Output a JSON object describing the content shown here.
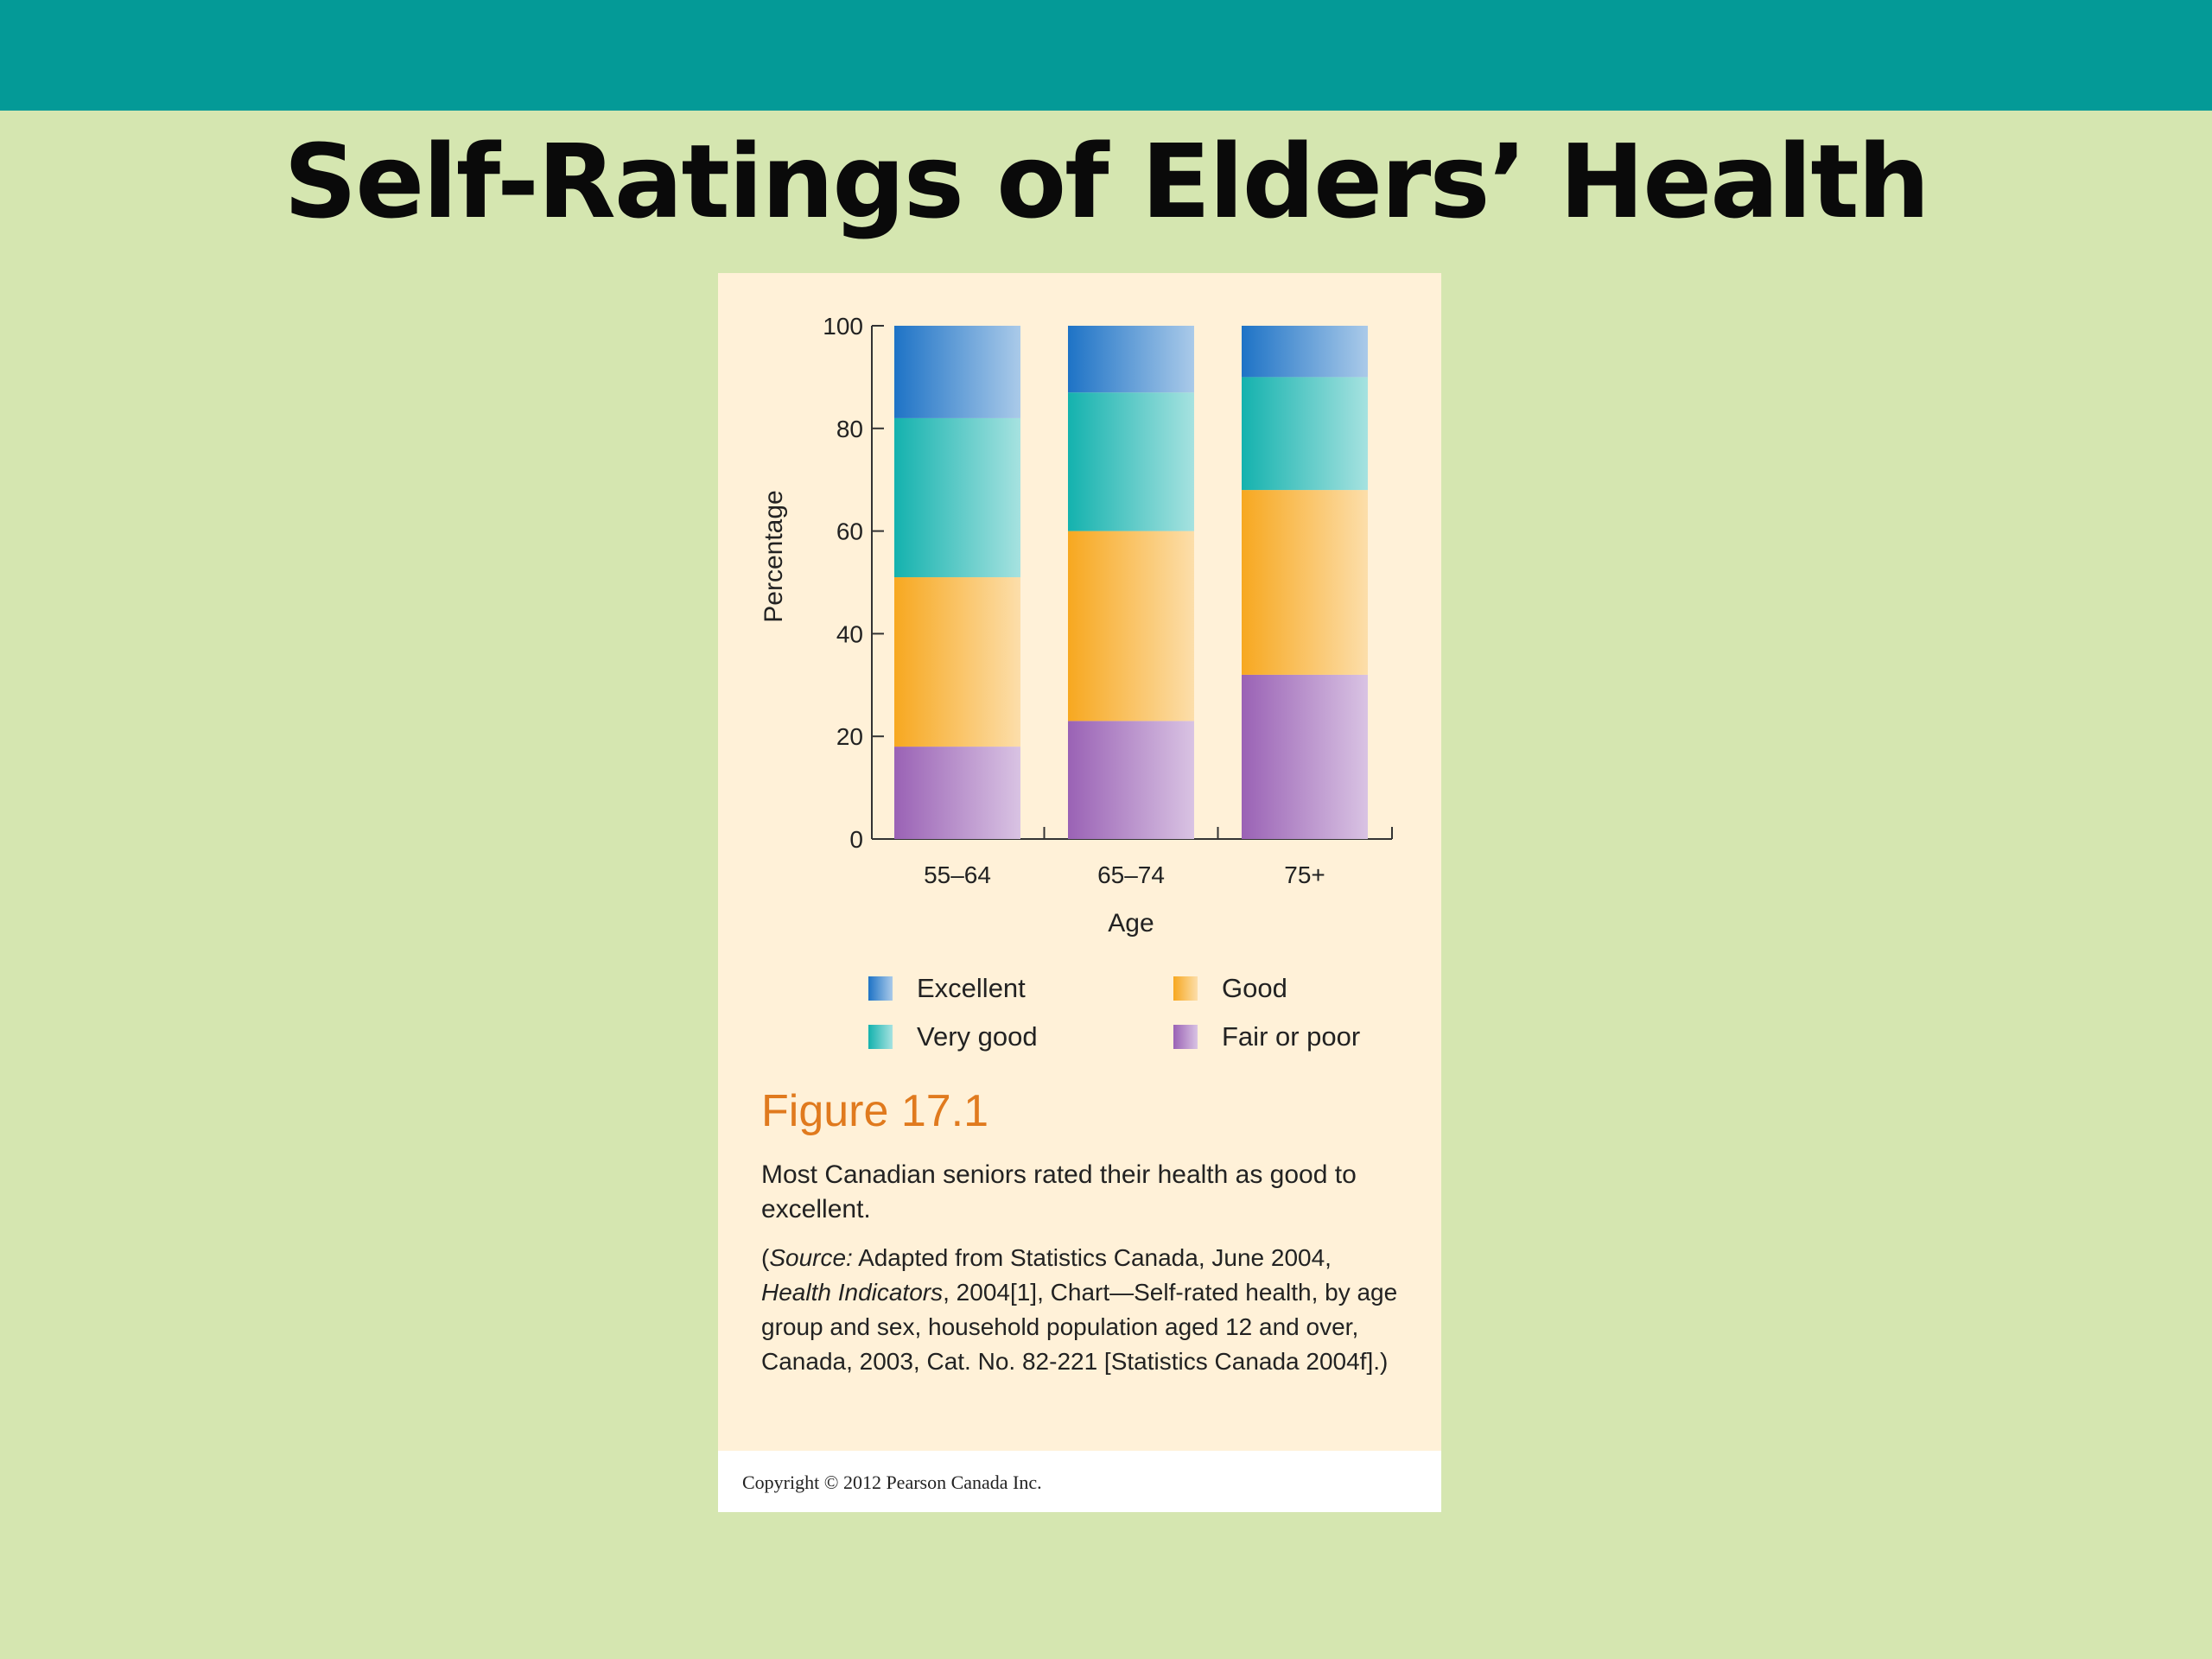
{
  "slide": {
    "title": "Self-Ratings of Elders’ Health",
    "accent_color": "#049a97",
    "background_color": "#d5e6b0"
  },
  "figure": {
    "label": "Figure 17.1",
    "caption": "Most Canadian seniors rated their health as good to excellent.",
    "source": {
      "open": "(",
      "source_word": "Source:",
      "text_1": " Adapted from Statistics Canada, June 2004, ",
      "publication": "Health Indicators",
      "text_2": ", 2004[1], Chart—Self-rated health, by age group and sex, household population aged 12 and over, Canada, 2003, Cat. No. 82-221 [Statistics Canada 2004f].)"
    },
    "copyright": "Copyright © 2012 Pearson Canada Inc."
  },
  "chart_data": {
    "type": "bar",
    "stacked": true,
    "title": "",
    "xlabel": "Age",
    "ylabel": "Percentage",
    "ylim": [
      0,
      100
    ],
    "yticks": [
      0,
      20,
      40,
      60,
      80,
      100
    ],
    "categories": [
      "55–64",
      "65–74",
      "75+"
    ],
    "series": [
      {
        "name": "Fair or poor",
        "values": [
          18,
          23,
          32
        ],
        "color": "#9a62b5"
      },
      {
        "name": "Good",
        "values": [
          33,
          37,
          36
        ],
        "color": "#f7a820"
      },
      {
        "name": "Very good",
        "values": [
          31,
          27,
          22
        ],
        "color": "#14b2ae"
      },
      {
        "name": "Excellent",
        "values": [
          18,
          13,
          10
        ],
        "color": "#1e73c6"
      }
    ],
    "legend": {
      "placement": "bottom",
      "order": [
        "Excellent",
        "Good",
        "Very good",
        "Fair or poor"
      ]
    }
  }
}
